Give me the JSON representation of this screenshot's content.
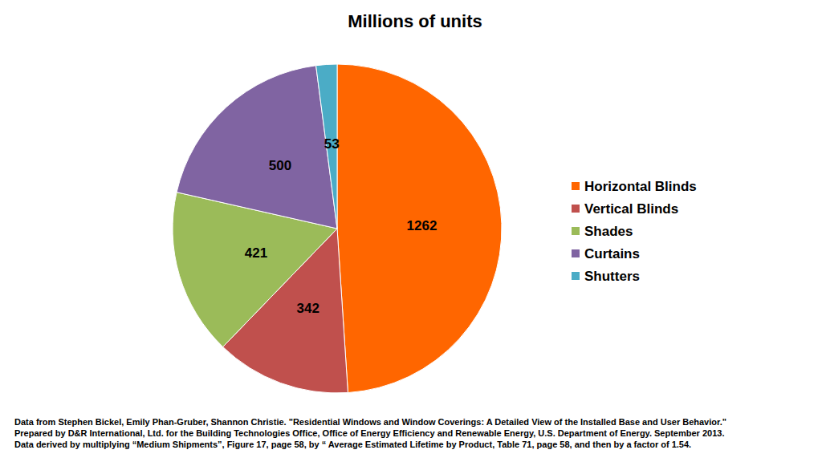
{
  "chart_data": {
    "type": "pie",
    "title": "Millions of units",
    "categories": [
      "Horizontal Blinds",
      "Vertical Blinds",
      "Shades",
      "Curtains",
      "Shutters"
    ],
    "values": [
      1262,
      342,
      421,
      500,
      53
    ],
    "colors": [
      "#ff6600",
      "#c0504d",
      "#9bbb59",
      "#8064a2",
      "#4bacc6"
    ],
    "data_labels": true,
    "legend": "right",
    "annotations": [
      "Data from Stephen Bickel, Emily Phan-Gruber, Shannon Christie. \"Residential Windows and Window Coverings: A Detailed View of the Installed Base and User Behavior.\"",
      "Prepared by D&R International, Ltd. for the Building Technologies Office, Office of Energy Efficiency and Renewable Energy, U.S. Department of Energy. September 2013.",
      "Data derived by multiplying “Medium Shipments”, Figure 17, page 58, by “ Average Estimated Lifetime by Product, Table 71, page 58, and then by a factor of 1.54."
    ]
  }
}
